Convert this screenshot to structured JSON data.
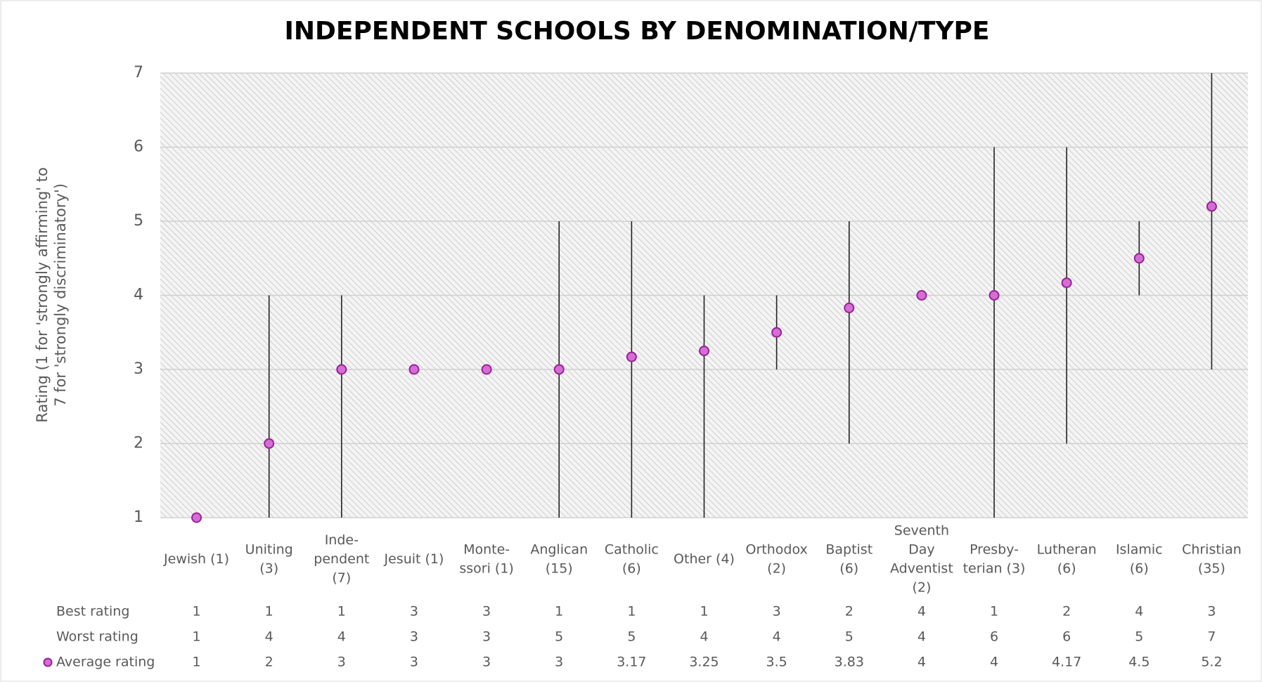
{
  "chart_data": {
    "type": "range",
    "title": "INDEPENDENT SCHOOLS BY DENOMINATION/TYPE",
    "y_label": "Rating (1 for 'strongly affirming' to\n7 for 'strongly discriminatory')",
    "categories": [
      "Jewish (1)",
      "Uniting\n(3)",
      "Inde-\npendent\n(7)",
      "Jesuit (1)",
      "Monte-\nssori (1)",
      "Anglican\n(15)",
      "Catholic\n(6)",
      "Other (4)",
      "Orthodox\n(2)",
      "Baptist\n(6)",
      "Seventh\nDay\nAdventist\n(2)",
      "Presby-\nterian (3)",
      "Lutheran\n(6)",
      "Islamic\n(6)",
      "Christian\n(35)"
    ],
    "series": [
      {
        "name": "Best rating",
        "role": "low",
        "values": [
          1,
          1,
          1,
          3,
          3,
          1,
          1,
          1,
          3,
          2,
          4,
          1,
          2,
          4,
          3
        ]
      },
      {
        "name": "Worst rating",
        "role": "high",
        "values": [
          1,
          4,
          4,
          3,
          3,
          5,
          5,
          4,
          4,
          5,
          4,
          6,
          6,
          5,
          7
        ]
      },
      {
        "name": "Average rating",
        "role": "marker",
        "color": "#d46ed4",
        "values": [
          1,
          2,
          3,
          3,
          3,
          3,
          3.17,
          3.25,
          3.5,
          3.83,
          4,
          4,
          4.17,
          4.5,
          5.2
        ]
      }
    ],
    "ylim": [
      1,
      7
    ],
    "yticks": [
      1,
      2,
      3,
      4,
      5,
      6,
      7
    ],
    "grid": true
  }
}
